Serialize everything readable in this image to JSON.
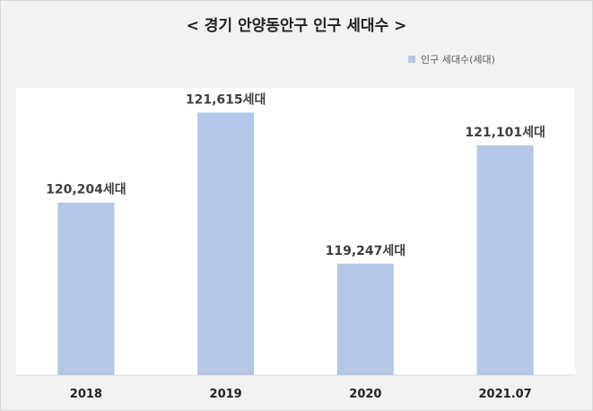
{
  "chart_data": {
    "type": "bar",
    "title": "< 경기 안양동안구 인구 세대수 >",
    "legend_position": "top-right",
    "categories": [
      "2018",
      "2019",
      "2020",
      "2021.07"
    ],
    "series": [
      {
        "name": "인구 세대수(세대)",
        "color": "#b4c7e7",
        "values": [
          120204,
          121615,
          119247,
          121101
        ],
        "labels": [
          "120,204세대",
          "121,615세대",
          "119,247세대",
          "121,101세대"
        ]
      }
    ],
    "ylim": [
      117500,
      122000
    ],
    "grid": false
  }
}
